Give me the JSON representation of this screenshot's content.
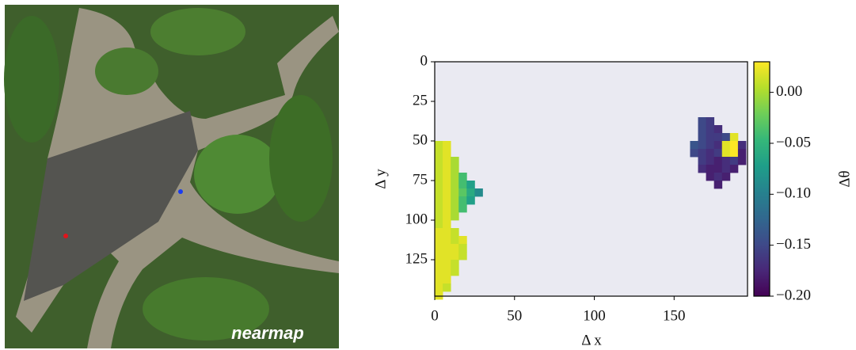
{
  "image": {
    "watermark": "nearmap"
  },
  "chart_data": {
    "type": "heatmap",
    "xlabel": "Δ x",
    "ylabel": "Δ y",
    "xlim": [
      0,
      196
    ],
    "ylim": [
      148,
      0
    ],
    "xticks": [
      0,
      50,
      100,
      150
    ],
    "yticks": [
      0,
      25,
      50,
      75,
      100,
      125
    ],
    "background": "#eaeaf2",
    "x": [
      0,
      5,
      0,
      5,
      0,
      5,
      10,
      0,
      5,
      10,
      0,
      5,
      10,
      15,
      0,
      5,
      10,
      15,
      20,
      0,
      5,
      10,
      15,
      20,
      25,
      0,
      5,
      10,
      15,
      20,
      0,
      5,
      10,
      15,
      0,
      5,
      10,
      0,
      5,
      0,
      5,
      10,
      0,
      5,
      10,
      15,
      0,
      5,
      10,
      15,
      0,
      5,
      10,
      15,
      0,
      5,
      10,
      0,
      5,
      10,
      0,
      5,
      0,
      5,
      0,
      165,
      170,
      165,
      170,
      175,
      165,
      170,
      175,
      180,
      185,
      160,
      165,
      170,
      175,
      180,
      185,
      190,
      160,
      165,
      170,
      175,
      180,
      185,
      190,
      165,
      170,
      175,
      180,
      185,
      190,
      165,
      170,
      175,
      180,
      185,
      170,
      175,
      180,
      175
    ],
    "y": [
      50,
      50,
      55,
      55,
      60,
      60,
      60,
      65,
      65,
      65,
      70,
      70,
      70,
      70,
      75,
      75,
      75,
      75,
      75,
      80,
      80,
      80,
      80,
      80,
      80,
      85,
      85,
      85,
      85,
      85,
      90,
      90,
      90,
      90,
      95,
      95,
      95,
      100,
      100,
      105,
      105,
      105,
      110,
      110,
      110,
      110,
      115,
      115,
      115,
      115,
      120,
      120,
      120,
      120,
      125,
      125,
      125,
      130,
      130,
      130,
      135,
      135,
      140,
      140,
      145,
      35,
      35,
      40,
      40,
      40,
      45,
      45,
      45,
      45,
      45,
      50,
      50,
      50,
      50,
      50,
      50,
      50,
      55,
      55,
      55,
      55,
      55,
      55,
      55,
      60,
      60,
      60,
      60,
      60,
      60,
      65,
      65,
      65,
      65,
      65,
      70,
      70,
      70,
      75
    ],
    "values": [
      0.01,
      0.02,
      0.01,
      0.02,
      0.01,
      0.02,
      0.0,
      0.01,
      0.02,
      0.0,
      0.01,
      0.02,
      0.0,
      -0.04,
      0.01,
      0.02,
      0.0,
      -0.04,
      -0.07,
      0.01,
      0.02,
      0.0,
      -0.03,
      -0.06,
      -0.09,
      0.01,
      0.02,
      0.0,
      -0.04,
      -0.07,
      0.01,
      0.02,
      0.0,
      -0.04,
      0.01,
      0.02,
      0.0,
      0.01,
      0.02,
      0.02,
      0.02,
      0.01,
      0.02,
      0.02,
      0.01,
      0.02,
      0.02,
      0.02,
      0.02,
      0.01,
      0.02,
      0.02,
      0.02,
      0.01,
      0.02,
      0.02,
      0.01,
      0.02,
      0.02,
      0.01,
      0.02,
      0.02,
      0.02,
      0.01,
      0.02,
      -0.15,
      -0.16,
      -0.15,
      -0.16,
      -0.17,
      -0.15,
      -0.16,
      -0.16,
      -0.15,
      0.02,
      -0.14,
      -0.15,
      -0.16,
      -0.17,
      0.02,
      0.03,
      -0.17,
      -0.15,
      -0.16,
      -0.17,
      -0.16,
      0.02,
      0.03,
      -0.18,
      -0.16,
      -0.17,
      -0.18,
      -0.17,
      -0.16,
      -0.18,
      -0.17,
      -0.18,
      -0.18,
      -0.17,
      -0.18,
      -0.18,
      -0.17,
      -0.18,
      -0.18
    ],
    "colorbar": {
      "label": "Δθ",
      "lim": [
        -0.2,
        0.03
      ],
      "ticks": [
        {
          "value": 0,
          "label": "0.00"
        },
        {
          "value": -0.05,
          "label": "−0.05"
        },
        {
          "value": -0.1,
          "label": "−0.10"
        },
        {
          "value": -0.15,
          "label": "−0.15"
        },
        {
          "value": -0.2,
          "label": "−0.20"
        }
      ]
    }
  }
}
